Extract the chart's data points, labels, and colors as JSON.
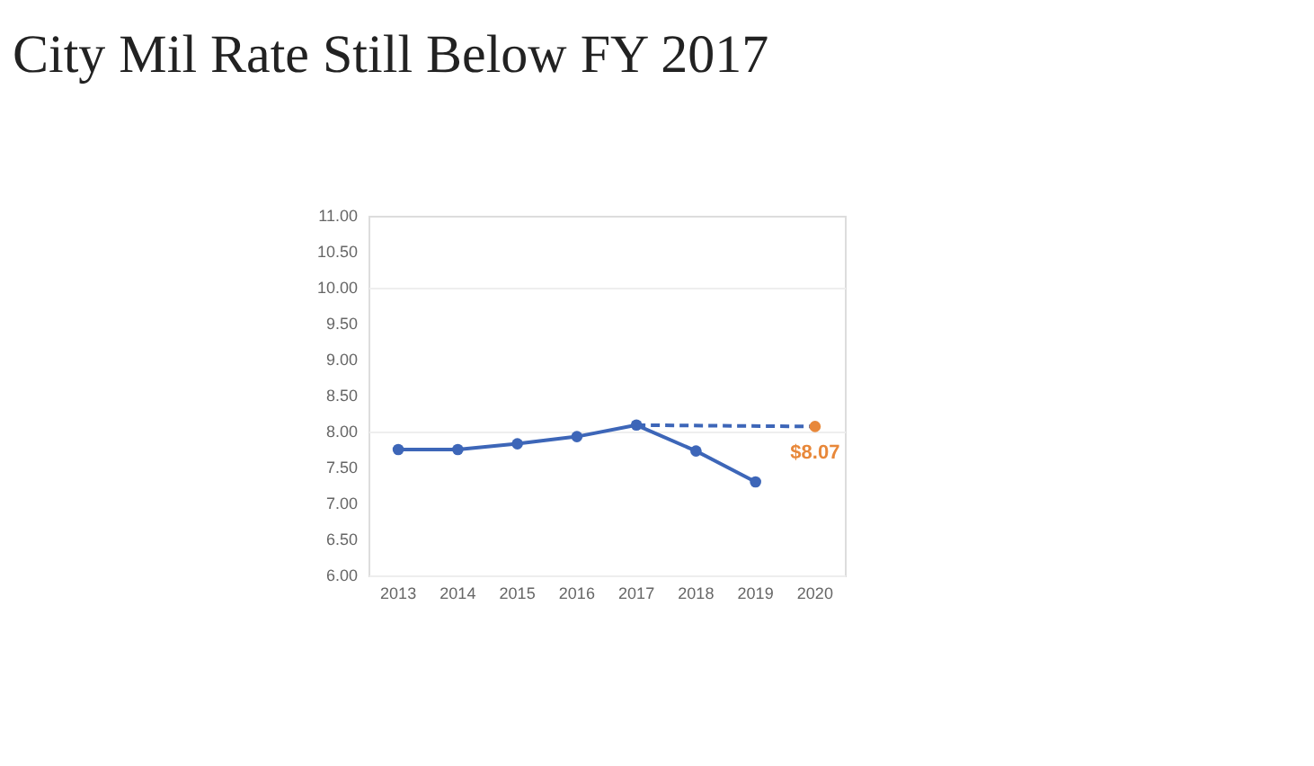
{
  "chart_data": {
    "type": "line",
    "title": "City Mil Rate Still Below FY 2017",
    "series": [
      {
        "color": "#3d66b8",
        "x": [
          2013,
          2014,
          2015,
          2016,
          2017,
          2018,
          2019
        ],
        "values": [
          7.75,
          7.75,
          7.83,
          7.93,
          8.09,
          7.73,
          7.3
        ],
        "marker": "circle",
        "line_style": "solid"
      },
      {
        "type": "line",
        "color": "#3d66b8",
        "x": [
          2017,
          2020
        ],
        "values": [
          8.09,
          8.07
        ],
        "marker": "none",
        "line_style": "dashed"
      },
      {
        "type": "scatter",
        "color": "#e8883a",
        "x": [
          2020
        ],
        "values": [
          8.07
        ],
        "marker": "circle",
        "value_labels": [
          "$8.07"
        ]
      }
    ],
    "xlim": [
      2012.5,
      2020.5
    ],
    "xticks": [
      2013,
      2014,
      2015,
      2016,
      2017,
      2018,
      2019,
      2020
    ],
    "ylim": [
      6.0,
      11.0
    ],
    "yticks": [
      {
        "value": 6,
        "label": "6.00"
      },
      {
        "value": 6.5,
        "label": "6.50"
      },
      {
        "value": 7,
        "label": "7.00"
      },
      {
        "value": 7.5,
        "label": "7.50"
      },
      {
        "value": 8,
        "label": "8.00"
      },
      {
        "value": 8.5,
        "label": "8.50"
      },
      {
        "value": 9,
        "label": "9.00"
      },
      {
        "value": 9.5,
        "label": "9.50"
      },
      {
        "value": 10,
        "label": "10.00"
      },
      {
        "value": 10.5,
        "label": "10.50"
      },
      {
        "value": 11,
        "label": "11.00"
      }
    ],
    "grid": "y"
  }
}
